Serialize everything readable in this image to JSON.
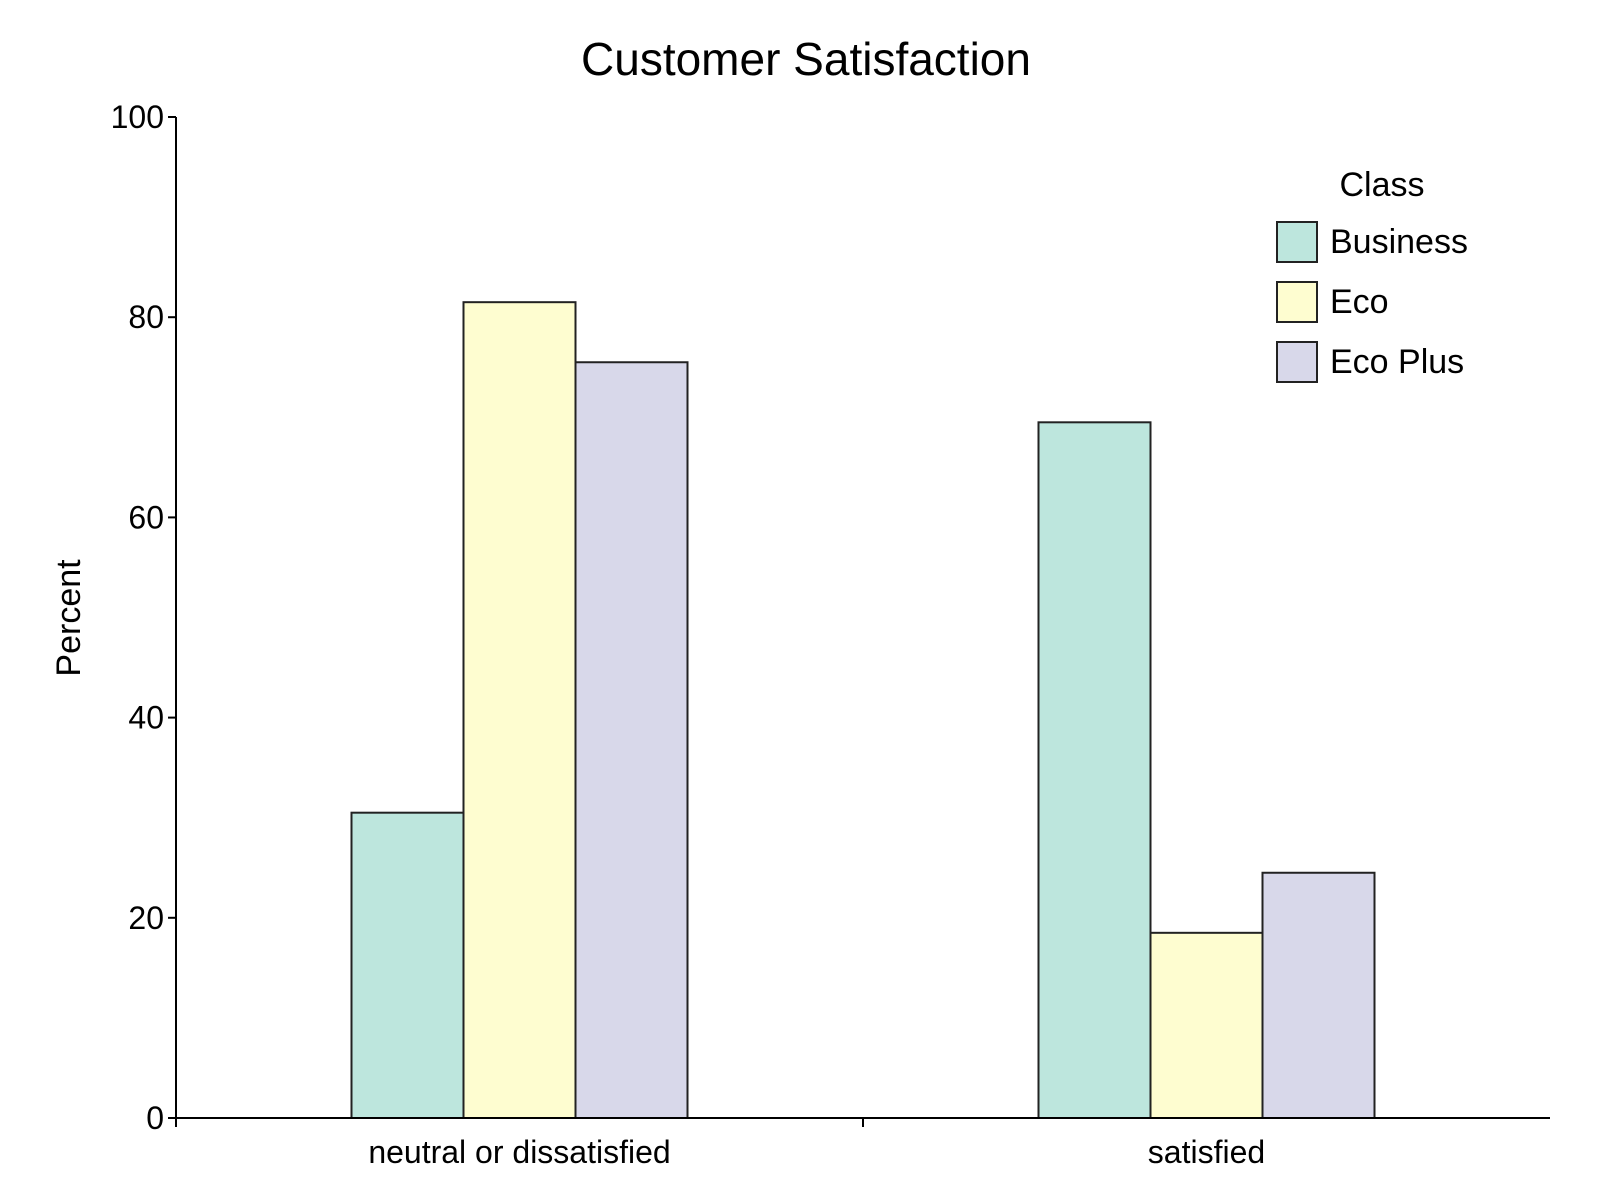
{
  "chart_data": {
    "type": "bar",
    "title": "Customer Satisfaction",
    "xlabel": "",
    "ylabel": "Percent",
    "categories": [
      "neutral or dissatisfied",
      "satisfied"
    ],
    "series": [
      {
        "name": "Business",
        "values": [
          30.5,
          69.5
        ],
        "color": "#bde6dd"
      },
      {
        "name": "Eco",
        "values": [
          81.5,
          18.5
        ],
        "color": "#fefdd0"
      },
      {
        "name": "Eco Plus",
        "values": [
          75.5,
          24.5
        ],
        "color": "#d8d8ea"
      }
    ],
    "ylim": [
      0,
      100
    ],
    "yticks": [
      0,
      20,
      40,
      60,
      80,
      100
    ],
    "grid": false,
    "legend": {
      "title": "Class",
      "placement": "top-right"
    }
  }
}
